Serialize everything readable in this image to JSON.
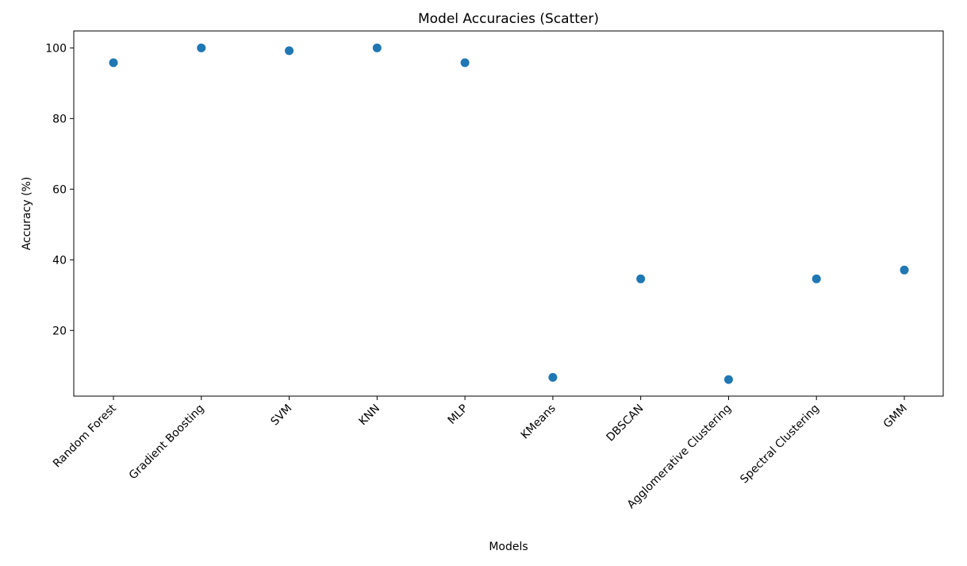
{
  "chart_data": {
    "type": "scatter",
    "title": "Model Accuracies (Scatter)",
    "xlabel": "Models",
    "ylabel": "Accuracy (%)",
    "categories": [
      "Random Forest",
      "Gradient Boosting",
      "SVM",
      "KNN",
      "MLP",
      "KMeans",
      "DBSCAN",
      "Agglomerative Clustering",
      "Spectral Clustering",
      "GMM"
    ],
    "values": [
      95.8,
      100,
      99.2,
      100,
      95.8,
      6.7,
      34.6,
      6.1,
      34.6,
      37.1
    ],
    "yticks": [
      20,
      40,
      60,
      80,
      100
    ],
    "ylim": [
      1.4,
      104.8
    ],
    "grid": false,
    "legend": "none",
    "point_color": "#1f77b4"
  }
}
